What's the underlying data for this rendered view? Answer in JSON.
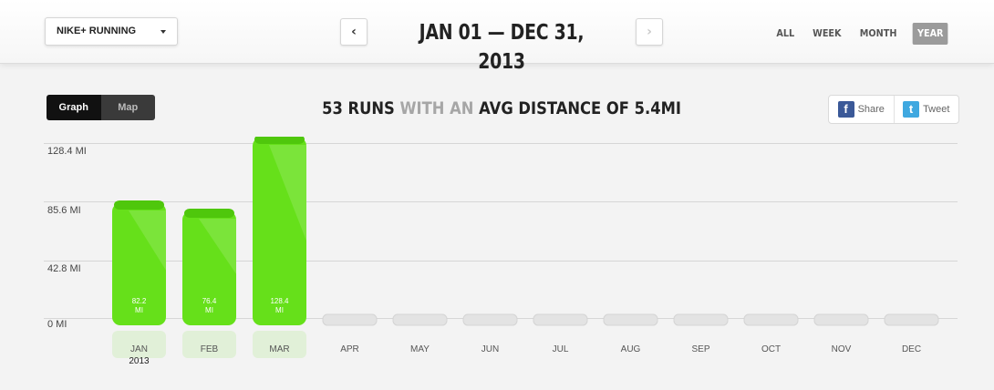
{
  "header": {
    "app_select": "NIKE+ RUNNING",
    "prev_icon": "chevron-left-icon",
    "next_icon": "chevron-right-icon",
    "prev_glyph": "‹",
    "next_glyph": "›",
    "date_range": "JAN 01 — DEC 31, 2013",
    "range_tabs": [
      {
        "label": "ALL",
        "active": false
      },
      {
        "label": "WEEK",
        "active": false
      },
      {
        "label": "MONTH",
        "active": false
      },
      {
        "label": "YEAR",
        "active": true
      }
    ]
  },
  "view_toggle": {
    "graph": "Graph",
    "map": "Map",
    "active": "Graph"
  },
  "summary": {
    "part1": "53 RUNS",
    "part2": "WITH AN",
    "part3": "AVG DISTANCE OF 5.4MI"
  },
  "social": {
    "share": "Share",
    "tweet": "Tweet",
    "fb_icon": "facebook-icon",
    "tw_icon": "twitter-icon",
    "fb_glyph": "f",
    "tw_glyph": "t"
  },
  "colors": {
    "bar_green": "#66e01a",
    "bar_green_dark": "#4fc70c",
    "empty_bar": "#e3e3e3"
  },
  "chart_data": {
    "type": "bar",
    "unit": "MI",
    "year": "2013",
    "y_ticks": [
      "0 MI",
      "42.8 MI",
      "85.6 MI",
      "128.4 MI"
    ],
    "ylim": [
      0,
      128.4
    ],
    "categories": [
      "JAN",
      "FEB",
      "MAR",
      "APR",
      "MAY",
      "JUN",
      "JUL",
      "AUG",
      "SEP",
      "OCT",
      "NOV",
      "DEC"
    ],
    "values": [
      82.2,
      76.4,
      128.4,
      0,
      0,
      0,
      0,
      0,
      0,
      0,
      0,
      0
    ],
    "value_labels": [
      "82.2",
      "76.4",
      "128.4",
      "",
      "",
      "",
      "",
      "",
      "",
      "",
      "",
      ""
    ],
    "grid": true
  }
}
